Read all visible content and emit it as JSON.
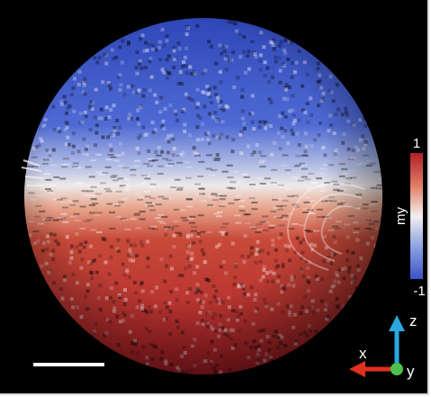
{
  "colorbar": {
    "max_label": "1",
    "min_label": "-1",
    "quantity_label": "my",
    "color_top": "#b01f2a",
    "color_mid": "#f2efef",
    "color_bottom": "#3a52c8"
  },
  "triad": {
    "z_label": "z",
    "x_label": "x",
    "y_label": "y",
    "z_color": "#29a8e0",
    "x_color": "#e03020",
    "y_color": "#4cc24c"
  },
  "scale_bar": {
    "color": "#ffffff"
  },
  "sphere": {
    "top_color": "#3a52c8",
    "band_color": "#e8e6ea",
    "bottom_color": "#b01f2a"
  }
}
